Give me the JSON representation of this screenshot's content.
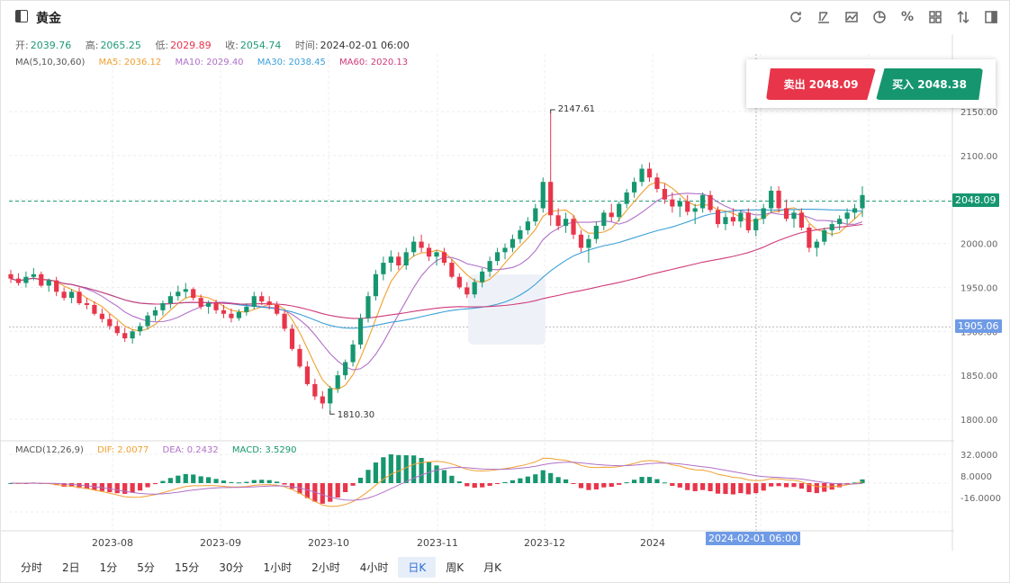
{
  "header": {
    "title": "黄金",
    "tools": [
      "refresh-icon",
      "drawing-icon",
      "chart-style-icon",
      "pie-icon",
      "percent-icon",
      "grid-icon",
      "sort-icon",
      "panel-icon"
    ]
  },
  "ohlc": {
    "open_label": "开:",
    "open": "2039.76",
    "high_label": "高:",
    "high": "2065.25",
    "low_label": "低:",
    "low": "2029.89",
    "close_label": "收:",
    "close": "2054.74",
    "time_label": "时间:",
    "time": "2024-02-01 06:00"
  },
  "ma": {
    "label": "MA(5,10,30,60)",
    "ma5": "MA5: 2036.12",
    "ma10": "MA10: 2029.40",
    "ma30": "MA30: 2038.45",
    "ma60": "MA60: 2020.13"
  },
  "macd": {
    "label": "MACD(12,26,9)",
    "dif": "DIF: 2.0077",
    "dea": "DEA: 0.2432",
    "macd": "MACD: 3.5290"
  },
  "trade": {
    "sell": "卖出 2048.09",
    "buy": "买入 2048.38"
  },
  "price_tags": {
    "current": "2048.09",
    "cursor": "1905.06"
  },
  "annotations": {
    "high": "2147.61",
    "low": "1810.30"
  },
  "cursor_date": "2024-02-01 06:00",
  "timeframes": [
    "分时",
    "2日",
    "1分",
    "5分",
    "15分",
    "30分",
    "1小时",
    "2小时",
    "4小时",
    "日K",
    "周K",
    "月K"
  ],
  "active_timeframe": "日K",
  "colors": {
    "up": "#16966f",
    "down": "#e8354a",
    "ma5": "#f0a030",
    "ma10": "#b070c8",
    "ma30": "#3aa0d8",
    "ma60": "#d03a7a"
  },
  "chart_data": {
    "type": "candlestick",
    "price_axis": [
      "2150.00",
      "2100.00",
      "2050.00",
      "2000.00",
      "1950.00",
      "1900.00",
      "1850.00",
      "1800.00"
    ],
    "macd_axis": [
      "32.0000",
      "8.0000",
      "-16.0000"
    ],
    "x_labels": [
      "2023-08",
      "2023-09",
      "2023-10",
      "2023-11",
      "2023-12",
      "2024"
    ],
    "ylim": [
      1780,
      2170
    ],
    "macd_ylim": [
      -28,
      40
    ],
    "candles": [
      [
        1965,
        1970,
        1955,
        1960
      ],
      [
        1960,
        1966,
        1952,
        1955
      ],
      [
        1955,
        1968,
        1950,
        1962
      ],
      [
        1962,
        1972,
        1958,
        1965
      ],
      [
        1965,
        1968,
        1950,
        1952
      ],
      [
        1952,
        1960,
        1945,
        1958
      ],
      [
        1958,
        1962,
        1940,
        1945
      ],
      [
        1945,
        1950,
        1935,
        1938
      ],
      [
        1938,
        1948,
        1932,
        1945
      ],
      [
        1945,
        1950,
        1930,
        1932
      ],
      [
        1932,
        1938,
        1925,
        1930
      ],
      [
        1930,
        1934,
        1918,
        1920
      ],
      [
        1920,
        1926,
        1910,
        1914
      ],
      [
        1914,
        1920,
        1902,
        1906
      ],
      [
        1906,
        1912,
        1895,
        1898
      ],
      [
        1898,
        1904,
        1888,
        1892
      ],
      [
        1892,
        1902,
        1886,
        1900
      ],
      [
        1900,
        1910,
        1895,
        1906
      ],
      [
        1906,
        1922,
        1902,
        1918
      ],
      [
        1918,
        1928,
        1912,
        1924
      ],
      [
        1924,
        1935,
        1918,
        1932
      ],
      [
        1932,
        1945,
        1926,
        1940
      ],
      [
        1940,
        1952,
        1935,
        1945
      ],
      [
        1945,
        1955,
        1938,
        1948
      ],
      [
        1948,
        1950,
        1935,
        1938
      ],
      [
        1938,
        1942,
        1925,
        1928
      ],
      [
        1928,
        1935,
        1920,
        1932
      ],
      [
        1932,
        1936,
        1920,
        1924
      ],
      [
        1924,
        1930,
        1915,
        1920
      ],
      [
        1920,
        1926,
        1910,
        1915
      ],
      [
        1915,
        1925,
        1912,
        1922
      ],
      [
        1922,
        1932,
        1918,
        1928
      ],
      [
        1928,
        1945,
        1925,
        1940
      ],
      [
        1940,
        1945,
        1930,
        1934
      ],
      [
        1934,
        1940,
        1925,
        1930
      ],
      [
        1930,
        1934,
        1918,
        1920
      ],
      [
        1920,
        1924,
        1900,
        1903
      ],
      [
        1903,
        1908,
        1878,
        1880
      ],
      [
        1880,
        1885,
        1858,
        1860
      ],
      [
        1860,
        1866,
        1838,
        1840
      ],
      [
        1840,
        1846,
        1822,
        1826
      ],
      [
        1826,
        1832,
        1812,
        1818
      ],
      [
        1818,
        1838,
        1810,
        1835
      ],
      [
        1835,
        1855,
        1830,
        1850
      ],
      [
        1850,
        1868,
        1845,
        1865
      ],
      [
        1865,
        1890,
        1860,
        1885
      ],
      [
        1885,
        1920,
        1880,
        1915
      ],
      [
        1915,
        1945,
        1910,
        1940
      ],
      [
        1940,
        1970,
        1935,
        1965
      ],
      [
        1965,
        1985,
        1958,
        1978
      ],
      [
        1978,
        1992,
        1968,
        1985
      ],
      [
        1985,
        1990,
        1970,
        1975
      ],
      [
        1975,
        1995,
        1970,
        1990
      ],
      [
        1990,
        2008,
        1985,
        2002
      ],
      [
        2002,
        2010,
        1990,
        1995
      ],
      [
        1995,
        2000,
        1980,
        1985
      ],
      [
        1985,
        1992,
        1975,
        1990
      ],
      [
        1990,
        1995,
        1975,
        1978
      ],
      [
        1978,
        1982,
        1960,
        1962
      ],
      [
        1962,
        1966,
        1948,
        1950
      ],
      [
        1950,
        1956,
        1938,
        1942
      ],
      [
        1942,
        1960,
        1938,
        1956
      ],
      [
        1956,
        1972,
        1950,
        1968
      ],
      [
        1968,
        1985,
        1962,
        1980
      ],
      [
        1980,
        1995,
        1975,
        1990
      ],
      [
        1990,
        2000,
        1982,
        1995
      ],
      [
        1995,
        2010,
        1990,
        2005
      ],
      [
        2005,
        2020,
        2000,
        2015
      ],
      [
        2015,
        2030,
        2010,
        2025
      ],
      [
        2025,
        2045,
        2020,
        2040
      ],
      [
        2040,
        2075,
        2035,
        2070
      ],
      [
        2070,
        2148,
        2020,
        2032
      ],
      [
        2032,
        2040,
        2015,
        2020
      ],
      [
        2020,
        2035,
        2012,
        2028
      ],
      [
        2028,
        2032,
        2005,
        2010
      ],
      [
        2010,
        2015,
        1990,
        1995
      ],
      [
        1995,
        2010,
        1978,
        2005
      ],
      [
        2005,
        2025,
        2000,
        2020
      ],
      [
        2020,
        2038,
        2015,
        2035
      ],
      [
        2035,
        2045,
        2025,
        2030
      ],
      [
        2030,
        2048,
        2025,
        2045
      ],
      [
        2045,
        2062,
        2040,
        2058
      ],
      [
        2058,
        2075,
        2052,
        2070
      ],
      [
        2070,
        2090,
        2065,
        2085
      ],
      [
        2085,
        2092,
        2070,
        2075
      ],
      [
        2075,
        2080,
        2058,
        2062
      ],
      [
        2062,
        2068,
        2045,
        2050
      ],
      [
        2050,
        2058,
        2035,
        2042
      ],
      [
        2042,
        2052,
        2030,
        2048
      ],
      [
        2048,
        2055,
        2032,
        2036
      ],
      [
        2036,
        2045,
        2022,
        2040
      ],
      [
        2040,
        2058,
        2035,
        2055
      ],
      [
        2055,
        2060,
        2035,
        2038
      ],
      [
        2038,
        2042,
        2018,
        2022
      ],
      [
        2022,
        2035,
        2015,
        2030
      ],
      [
        2030,
        2040,
        2020,
        2025
      ],
      [
        2025,
        2038,
        2018,
        2035
      ],
      [
        2035,
        2040,
        2012,
        2015
      ],
      [
        2015,
        2030,
        2008,
        2028
      ],
      [
        2028,
        2045,
        2022,
        2040
      ],
      [
        2040,
        2065,
        2035,
        2060
      ],
      [
        2060,
        2065,
        2035,
        2040
      ],
      [
        2040,
        2050,
        2025,
        2028
      ],
      [
        2028,
        2038,
        2018,
        2035
      ],
      [
        2035,
        2040,
        2015,
        2018
      ],
      [
        2018,
        2022,
        1990,
        1995
      ],
      [
        1995,
        2005,
        1985,
        2002
      ],
      [
        2002,
        2018,
        1998,
        2015
      ],
      [
        2015,
        2025,
        2008,
        2022
      ],
      [
        2022,
        2032,
        2015,
        2028
      ],
      [
        2028,
        2040,
        2022,
        2035
      ],
      [
        2035,
        2045,
        2028,
        2040
      ],
      [
        2040,
        2065,
        2030,
        2055
      ]
    ]
  }
}
